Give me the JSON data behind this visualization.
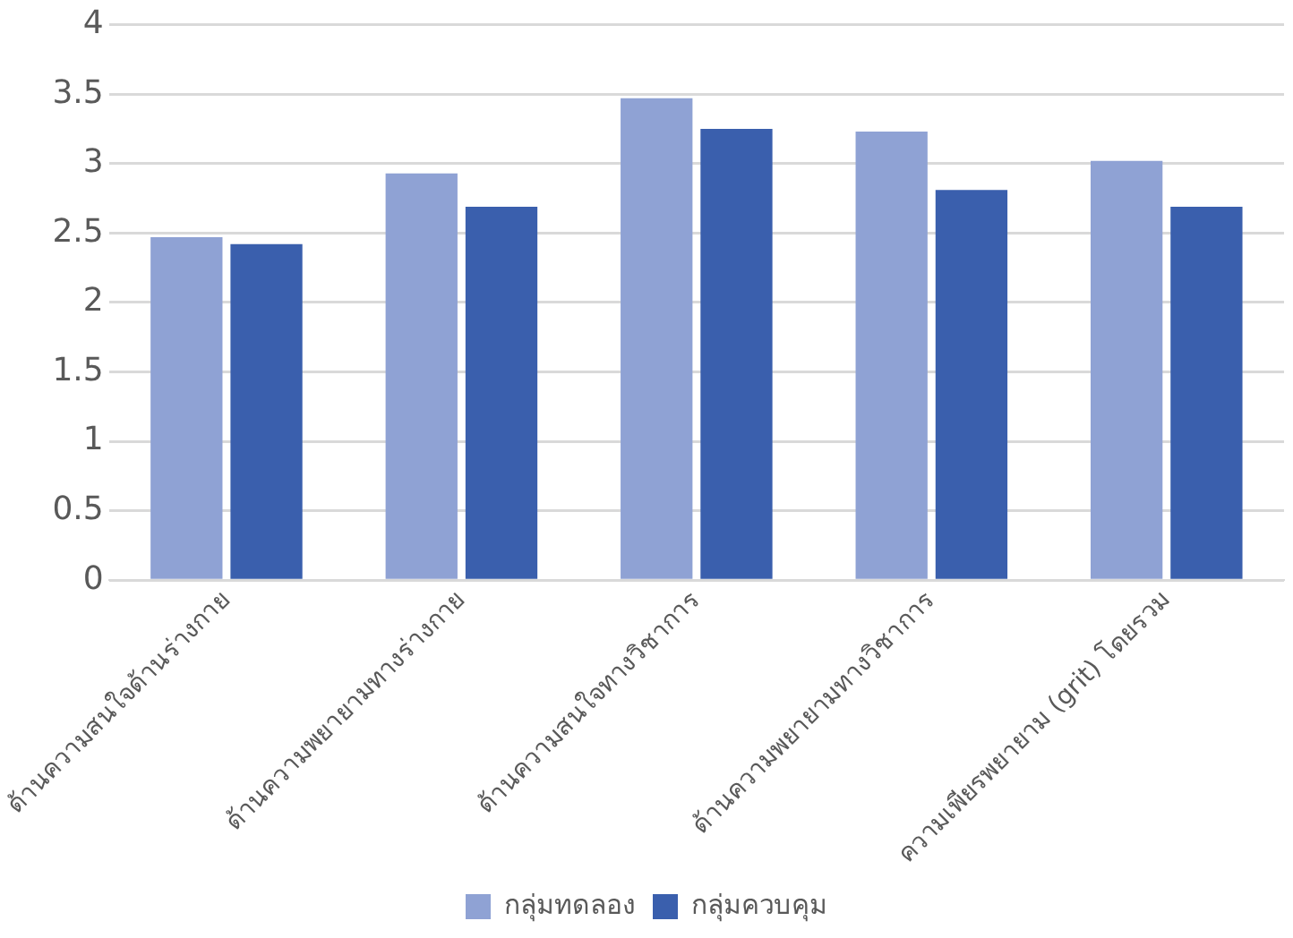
{
  "chart_data": {
    "type": "bar",
    "categories": [
      "ด้านความสนใจด้านร่างกาย",
      "ด้านความพยายามทางร่างกาย",
      "ด้านความสนใจทางวิชาการ",
      "ด้านความพยายามทางวิชาการ",
      "ความเพียรพยายาม (grit) โดยรวม"
    ],
    "series": [
      {
        "name": "กลุ่มทดลอง",
        "color": "#8fa2d4",
        "values": [
          2.47,
          2.93,
          3.47,
          3.23,
          3.02
        ]
      },
      {
        "name": "กลุ่มควบคุม",
        "color": "#3a5fad",
        "values": [
          2.42,
          2.69,
          3.25,
          2.81,
          2.69
        ]
      }
    ],
    "ylim": [
      0,
      4
    ],
    "yticks": [
      0,
      0.5,
      1,
      1.5,
      2,
      2.5,
      3,
      3.5,
      4
    ],
    "grid": "y",
    "legend": "bottom"
  }
}
